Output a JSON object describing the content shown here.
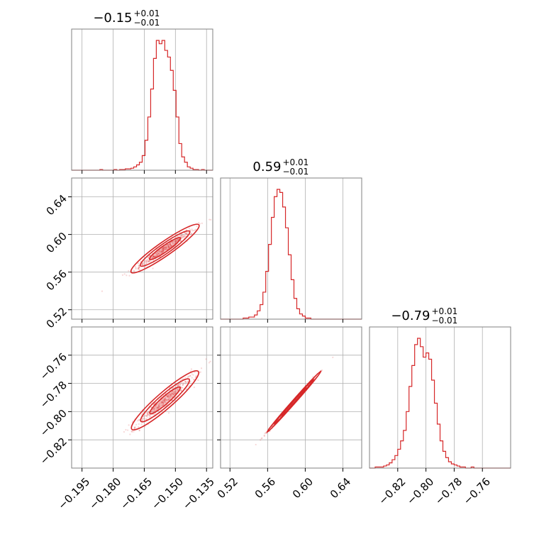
{
  "colors": {
    "series": "#d62728",
    "grid": "#b0b0b0",
    "frame": "#808080",
    "background": "#ffffff"
  },
  "chart_data": {
    "type": "corner",
    "parameters": [
      {
        "id": "p1",
        "range": [
          -0.2,
          -0.132
        ],
        "ticks": [
          -0.195,
          -0.18,
          -0.165,
          -0.15,
          -0.135
        ],
        "tick_labels": [
          "−0.195",
          "−0.180",
          "−0.165",
          "−0.150",
          "−0.135"
        ],
        "title_main": "−0.15",
        "title_sup": "+0.01",
        "title_sub": "−0.01",
        "mean": -0.15,
        "sd": 0.005
      },
      {
        "id": "p2",
        "range": [
          0.51,
          0.66
        ],
        "ticks": [
          0.52,
          0.56,
          0.6,
          0.64
        ],
        "tick_labels": [
          "0.52",
          "0.56",
          "0.60",
          "0.64"
        ],
        "title_main": "0.59",
        "title_sup": "+0.01",
        "title_sub": "−0.01",
        "mean": 0.59,
        "sd": 0.011
      },
      {
        "id": "p3",
        "range": [
          -0.84,
          -0.74
        ],
        "ticks": [
          -0.82,
          -0.8,
          -0.78,
          -0.76
        ],
        "tick_labels": [
          "−0.82",
          "−0.80",
          "−0.78",
          "−0.76"
        ],
        "title_main": "−0.79",
        "title_sup": "+0.01",
        "title_sub": "−0.01",
        "mean": -0.792,
        "sd": 0.0075
      }
    ],
    "histograms": [
      {
        "param": "p1",
        "bins": 50,
        "counts": [
          0,
          0,
          0,
          0,
          0,
          0,
          0,
          0,
          0,
          0,
          1,
          0,
          0,
          0,
          0,
          1,
          0,
          1,
          1,
          2,
          2,
          3,
          5,
          8,
          12,
          22,
          45,
          80,
          122,
          168,
          195,
          190,
          195,
          180,
          170,
          150,
          120,
          80,
          40,
          20,
          12,
          5,
          3,
          1,
          1,
          0,
          1,
          0,
          0,
          0
        ]
      },
      {
        "param": "p2",
        "bins": 50,
        "counts": [
          0,
          0,
          0,
          0,
          0,
          0,
          0,
          0,
          1,
          1,
          2,
          2,
          4,
          8,
          14,
          26,
          46,
          72,
          98,
          118,
          125,
          122,
          108,
          88,
          62,
          38,
          20,
          10,
          5,
          3,
          1,
          1,
          0,
          0,
          0,
          0,
          0,
          0,
          0,
          0,
          0,
          0,
          0,
          0,
          0,
          0,
          0,
          0,
          0,
          0
        ]
      },
      {
        "param": "p3",
        "bins": 50,
        "counts": [
          0,
          0,
          1,
          1,
          1,
          2,
          3,
          5,
          8,
          12,
          18,
          26,
          36,
          54,
          78,
          98,
          118,
          124,
          116,
          106,
          110,
          104,
          84,
          62,
          42,
          26,
          16,
          10,
          6,
          4,
          3,
          2,
          1,
          1,
          0,
          0,
          1,
          0,
          0,
          0,
          0,
          0,
          0,
          0,
          0,
          0,
          0,
          0,
          0,
          0
        ]
      }
    ],
    "pairs": [
      {
        "x": "p1",
        "y": "p2",
        "center": [
          -0.155,
          0.585
        ],
        "axis_angle_deg": 57,
        "semi_major": 0.03,
        "semi_minor": 0.0035
      },
      {
        "x": "p1",
        "y": "p3",
        "center": [
          -0.155,
          -0.792
        ],
        "axis_angle_deg": 52,
        "semi_major": 0.026,
        "semi_minor": 0.004
      },
      {
        "x": "p2",
        "y": "p3",
        "center": [
          0.588,
          -0.793
        ],
        "axis_angle_deg": 37,
        "semi_major": 0.036,
        "semi_minor": 0.0012
      }
    ],
    "contour_levels_sigma": [
      1,
      1.6,
      2.2
    ],
    "grid": true
  }
}
